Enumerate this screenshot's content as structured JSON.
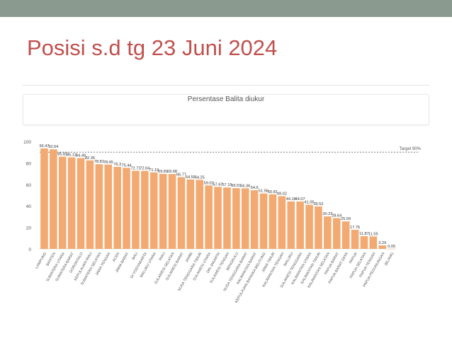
{
  "slide": {
    "title": "Posisi s.d tg 23 Juni 2024"
  },
  "colors": {
    "bar": "#f2aa72",
    "title": "#c0504d",
    "top_bar": "#8a9a8e",
    "axis_text": "#555555",
    "target_line": "#666666"
  },
  "chart_data": {
    "type": "bar",
    "title": "Persentase Balita diukur",
    "xlabel": "",
    "ylabel": "",
    "ylim": [
      0,
      100
    ],
    "yticks": [
      0,
      20,
      40,
      60,
      80,
      100
    ],
    "target": {
      "label": "Target 90%",
      "value": 90
    },
    "categories": [
      "LAMPUNG",
      "BANTEN",
      "SUMATERA UTARA",
      "SUMATERA BARAT",
      "GORONTALO",
      "KEPULAUAN RIAU",
      "SUMATERA SELATAN",
      "JAWA TENGAH",
      "ACEH",
      "JAWA BARAT",
      "BALI",
      "DI YOGYAKARTA",
      "MALUKU UTARA",
      "RIAU",
      "SULAWESI SELATAN",
      "SULAWESI BARAT",
      "JAMBI",
      "NUSA TENGGARA TIMUR",
      "SULAWESI UTARA",
      "DKI JAKARTA",
      "SULAWESI TENGAH",
      "BENGKULU",
      "NUSA TENGGARA BARAT",
      "KALIMANTAN BARAT",
      "KEPULAUAN BANGKA BELITUNG",
      "JAWA TIMUR",
      "KALIMANTAN TENGAH",
      "MALUKU",
      "SULAWESI TENGGARA",
      "KALIMANTAN UTARA",
      "KALIMANTAN TIMUR",
      "KALIMANTAN SELATAN",
      "PAPUA BARAT",
      "PAPUA BARAT DAYA",
      "PAPUA",
      "PAPUA SELATAN",
      "PAPUA TENGAH",
      "PAPUA PEGUNUNGAN",
      "(BLANK)"
    ],
    "values": [
      93.47,
      92.64,
      85.82,
      85.13,
      84.49,
      82.35,
      78.81,
      78.45,
      76.3,
      75.44,
      72.71,
      72.64,
      71.19,
      69.81,
      69.68,
      66.77,
      64.59,
      64.25,
      59.02,
      57.67,
      57.15,
      56.51,
      56.36,
      54.6,
      51.56,
      50.81,
      49.02,
      44.18,
      44.07,
      41.05,
      39.52,
      30.23,
      28.64,
      25.59,
      17.76,
      11.87,
      11.55,
      3.29,
      0.05
    ],
    "labels": [
      "93.47",
      "92.64",
      "85.82",
      "85.13",
      "84.49",
      "82.35",
      "78.81",
      "78.45",
      "76.3",
      "75.44",
      "72.71",
      "72.64",
      "71.19",
      "69.81",
      "69.68",
      "66.77",
      "64.59",
      "64.25",
      "59.02",
      "57.67",
      "57.15",
      "56.51",
      "56.36",
      "54.6",
      "51.56",
      "50.81",
      "49.02",
      "44.18",
      "44.07",
      "41.05",
      "39.52",
      "30.23",
      "28.64",
      "25.59",
      "17.76",
      "11.87",
      "11.55",
      "3.29",
      "0.05"
    ]
  }
}
